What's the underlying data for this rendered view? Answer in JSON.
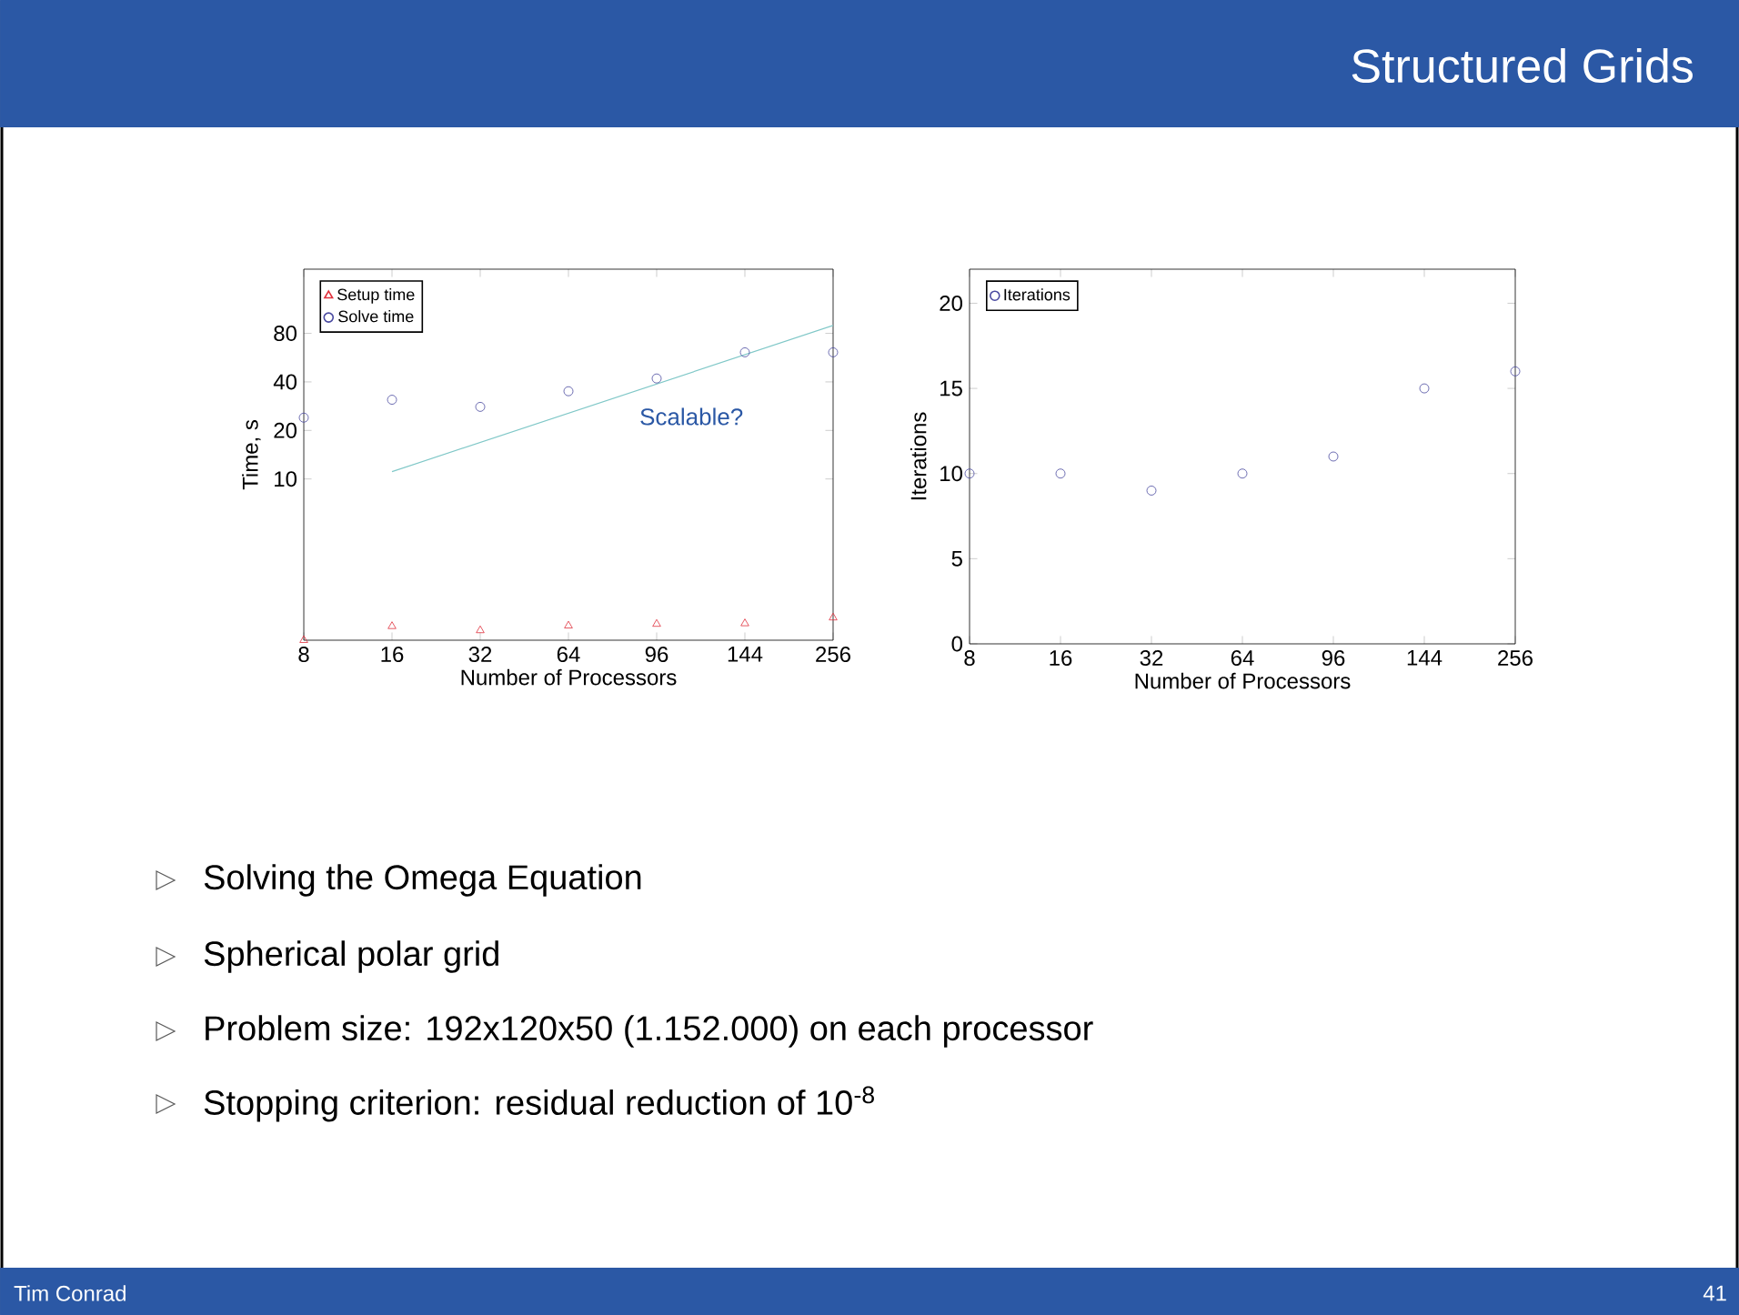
{
  "chart_data": [
    {
      "type": "scatter",
      "xlabel": "Number of Processors",
      "ylabel": "Time, s",
      "log": "y",
      "legend": "top left",
      "categories": [
        "8",
        "16",
        "32",
        "64",
        "96",
        "144",
        "256"
      ],
      "ylim": [
        1,
        200
      ],
      "yticks": [
        10,
        20,
        40,
        80
      ],
      "series": [
        {
          "name": "Setup time",
          "color": "#e0303c",
          "marker": "triangle",
          "values": [
            1.0,
            1.22,
            1.15,
            1.23,
            1.26,
            1.27,
            1.38
          ]
        },
        {
          "name": "Solve time",
          "color": "#4a4aa0",
          "marker": "circle",
          "values": [
            24,
            31,
            28,
            35,
            42,
            61,
            61
          ]
        },
        {
          "type": "line",
          "color": "#80c8c8",
          "x": [
            "16",
            "256"
          ],
          "values": [
            11.1,
            89.5
          ]
        }
      ],
      "annotations": [
        "Scalable?",
        "Solving the Omega Equation",
        "Spherical polar grid",
        "Problem size: 192x120x50 (1.152.000) on each processor",
        "Stopping criterion: residual reduction of 10$^{-8}$",
        "Tim Conrad",
        "41"
      ]
    },
    {
      "type": "scatter",
      "title": "Structured Grids",
      "xlabel": "Number of Processors",
      "ylabel": "Iterations",
      "legend": "top left",
      "categories": [
        "8",
        "16",
        "32",
        "64",
        "96",
        "144",
        "256"
      ],
      "ylim": [
        0,
        22
      ],
      "yticks": [
        0,
        5,
        10,
        15,
        20
      ],
      "series": [
        {
          "name": "Iterations",
          "color": "#4a4aa0",
          "marker": "circle",
          "values": [
            10,
            10,
            9,
            10,
            11,
            15,
            16
          ]
        }
      ]
    }
  ]
}
